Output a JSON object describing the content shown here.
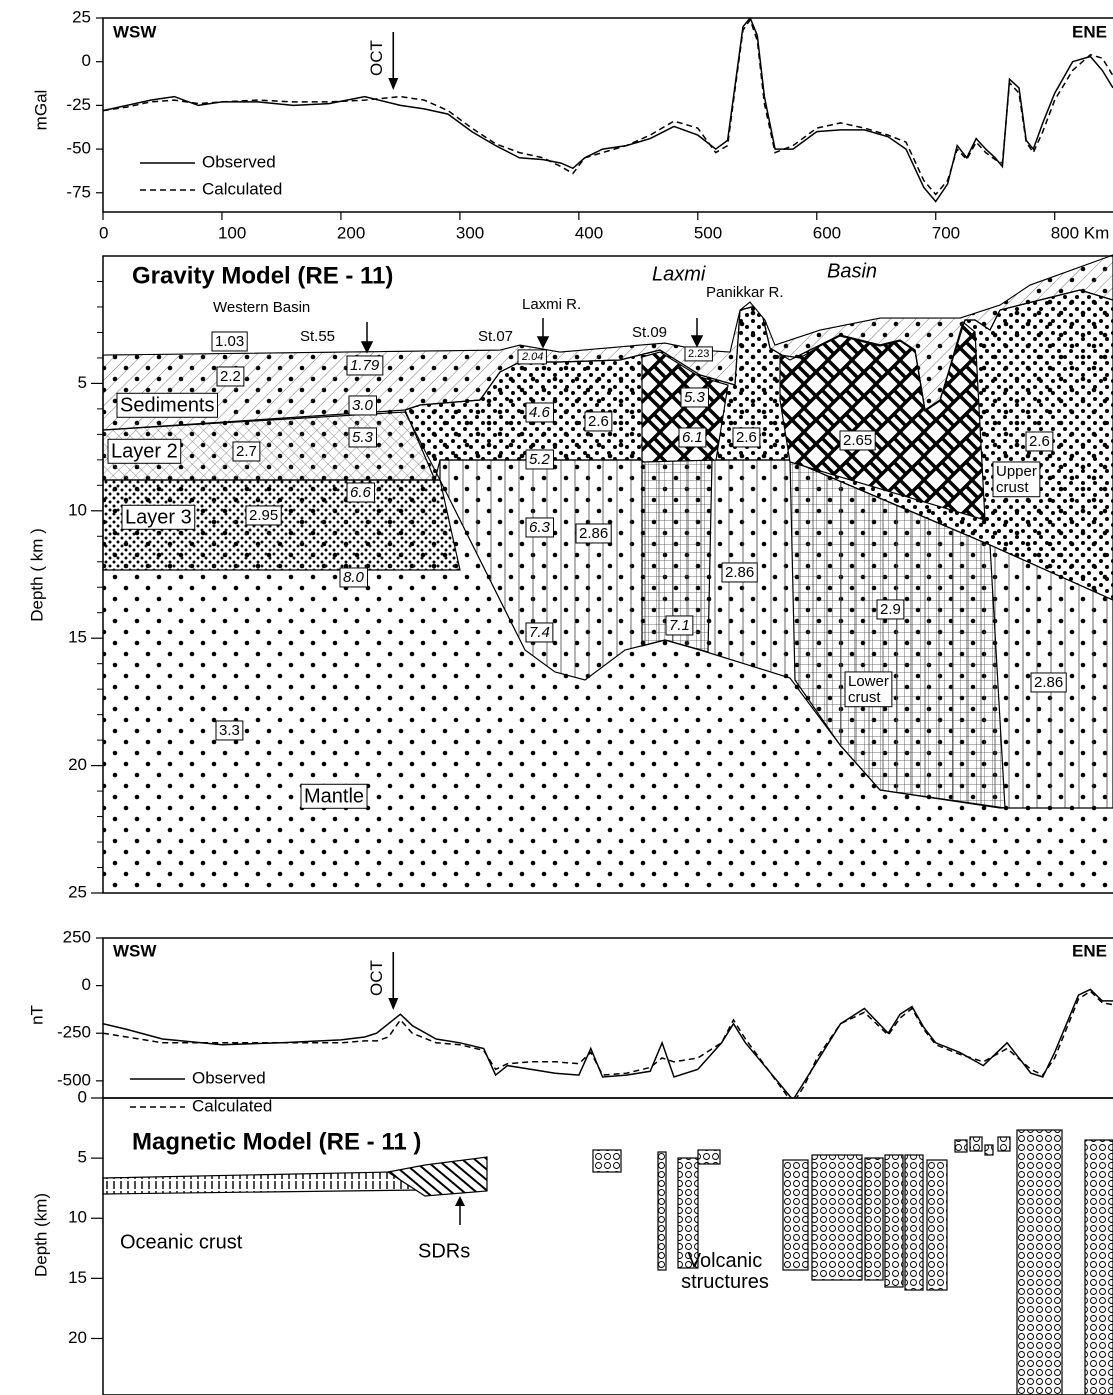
{
  "chart_data": [
    {
      "type": "line",
      "ylabel": "mGal",
      "left_label": "WSW",
      "right_label": "ENE",
      "annotation": {
        "text": "OCT",
        "x": 244
      },
      "x": [
        0,
        20,
        40,
        60,
        80,
        100,
        130,
        160,
        190,
        220,
        250,
        270,
        290,
        310,
        330,
        350,
        370,
        385,
        395,
        405,
        420,
        440,
        460,
        480,
        500,
        515,
        525,
        532,
        538,
        544,
        550,
        556,
        565,
        580,
        600,
        620,
        640,
        660,
        675,
        690,
        700,
        710,
        718,
        726,
        734,
        742,
        750,
        756,
        762,
        770,
        776,
        782,
        790,
        800,
        815,
        830,
        840,
        849
      ],
      "series": [
        {
          "name": "Observed",
          "color": "#000000",
          "dash": false,
          "values": [
            -28,
            -25,
            -22,
            -20,
            -25,
            -23,
            -23,
            -25,
            -24,
            -20,
            -25,
            -27,
            -30,
            -40,
            -48,
            -55,
            -56,
            -58,
            -61,
            -55,
            -50,
            -48,
            -44,
            -37,
            -42,
            -50,
            -45,
            -10,
            20,
            25,
            15,
            -20,
            -50,
            -50,
            -40,
            -39,
            -39,
            -43,
            -50,
            -72,
            -80,
            -70,
            -48,
            -55,
            -44,
            -50,
            -55,
            -60,
            -10,
            -15,
            -45,
            -50,
            -35,
            -18,
            0,
            3,
            -5,
            -15
          ]
        },
        {
          "name": "Calculated",
          "color": "#000000",
          "dash": true,
          "values": [
            -28,
            -26,
            -23,
            -22,
            -24,
            -23,
            -22,
            -23,
            -23,
            -22,
            -20,
            -22,
            -28,
            -38,
            -47,
            -52,
            -55,
            -60,
            -64,
            -55,
            -52,
            -48,
            -42,
            -34,
            -38,
            -52,
            -48,
            -12,
            18,
            24,
            12,
            -24,
            -52,
            -48,
            -38,
            -35,
            -38,
            -42,
            -46,
            -68,
            -76,
            -68,
            -50,
            -56,
            -46,
            -52,
            -56,
            -58,
            -12,
            -18,
            -46,
            -52,
            -40,
            -22,
            -5,
            4,
            2,
            -8
          ]
        }
      ],
      "xlim": [
        0,
        849
      ],
      "ylim": [
        -86,
        25
      ],
      "xticks": [
        0,
        100,
        200,
        300,
        400,
        500,
        600,
        700,
        {
          "value": 800,
          "label": "800 Km"
        }
      ],
      "yticks": [
        25,
        0,
        -25,
        -50,
        -75
      ]
    },
    {
      "type": "section",
      "title": "Gravity Model (RE - 11)",
      "ylabel": "Depth ( km )",
      "ylim": [
        0,
        25
      ],
      "yticks": [
        5,
        10,
        15,
        20,
        25
      ],
      "yminorticks": [
        1,
        2,
        3,
        4,
        6,
        7,
        8,
        9,
        11,
        12,
        13,
        14,
        16,
        17,
        18,
        19,
        21,
        22,
        23,
        24
      ],
      "labels": [
        "Laxmi",
        "Basin",
        "Western Basin",
        "Laxmi R.",
        "Panikkar R.",
        "St.55",
        "St.07",
        "St.09",
        "1.03",
        "1.79",
        "2.04",
        "2.23",
        "2.2",
        "Sediments",
        "3.0",
        "4.6",
        "2.6",
        "5.3",
        "5.3",
        "Layer 2",
        "2.7",
        "6.1",
        "2.6",
        "2.65",
        "2.6",
        "5.2",
        "6.6",
        "Upper crust",
        "Layer 3",
        "2.95",
        "6.3",
        "2.86",
        "2.86",
        "8.0",
        "2.9",
        "7.4",
        "7.1",
        "Lower crust",
        "2.86",
        "3.3",
        "Mantle"
      ]
    },
    {
      "type": "line",
      "ylabel": "nT",
      "left_label": "WSW",
      "right_label": "ENE",
      "annotation": {
        "text": "OCT",
        "x": 244
      },
      "x": [
        0,
        20,
        50,
        100,
        150,
        200,
        220,
        230,
        240,
        250,
        260,
        280,
        300,
        320,
        330,
        340,
        360,
        380,
        400,
        410,
        420,
        440,
        460,
        470,
        480,
        500,
        520,
        530,
        540,
        560,
        580,
        590,
        600,
        620,
        640,
        660,
        670,
        680,
        690,
        700,
        720,
        740,
        760,
        780,
        790,
        800,
        820,
        830,
        840,
        849
      ],
      "series": [
        {
          "name": "Observed",
          "color": "#000000",
          "dash": false,
          "values": [
            -200,
            -230,
            -280,
            -310,
            -300,
            -285,
            -270,
            -250,
            -200,
            -150,
            -210,
            -280,
            -300,
            -330,
            -470,
            -420,
            -440,
            -460,
            -470,
            -330,
            -480,
            -470,
            -450,
            -300,
            -480,
            -440,
            -300,
            -200,
            -300,
            -450,
            -600,
            -500,
            -400,
            -200,
            -120,
            -250,
            -150,
            -110,
            -220,
            -300,
            -350,
            -420,
            -300,
            -460,
            -480,
            -350,
            -50,
            -20,
            -80,
            -80
          ]
        },
        {
          "name": "Calculated",
          "color": "#000000",
          "dash": true,
          "values": [
            -250,
            -270,
            -300,
            -300,
            -300,
            -300,
            -290,
            -290,
            -270,
            -180,
            -250,
            -300,
            -310,
            -340,
            -440,
            -410,
            -400,
            -400,
            -410,
            -350,
            -470,
            -460,
            -430,
            -380,
            -400,
            -380,
            -300,
            -180,
            -280,
            -450,
            -620,
            -520,
            -380,
            -200,
            -140,
            -260,
            -170,
            -120,
            -230,
            -310,
            -360,
            -400,
            -330,
            -440,
            -470,
            -380,
            -70,
            -30,
            -90,
            -100
          ]
        }
      ],
      "xlim": [
        0,
        849
      ],
      "ylim": [
        -590,
        250
      ],
      "yticks": [
        250,
        0,
        -250,
        -500
      ]
    },
    {
      "type": "section",
      "title": "Magnetic Model (RE - 11 )",
      "ylabel": "Depth (km)",
      "ylim": [
        0,
        24.7
      ],
      "yticks": [
        0,
        5,
        10,
        15,
        20
      ],
      "labels": [
        "Oceanic crust",
        "SDRs",
        "Volcanic structures"
      ]
    }
  ]
}
